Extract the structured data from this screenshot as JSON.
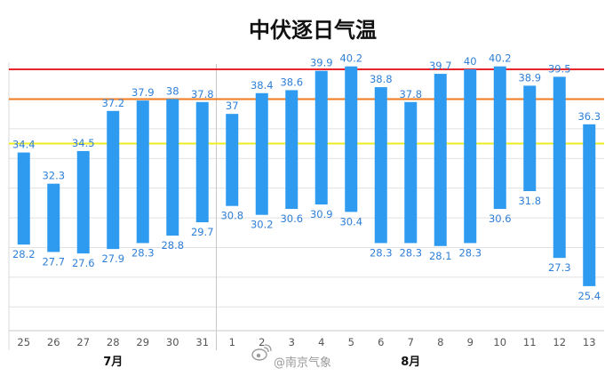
{
  "chart_data": {
    "type": "bar",
    "subtype": "floating-range",
    "title": "中伏逐日气温",
    "categories": [
      "25",
      "26",
      "27",
      "28",
      "29",
      "30",
      "31",
      "1",
      "2",
      "3",
      "4",
      "5",
      "6",
      "7",
      "8",
      "9",
      "10",
      "11",
      "12",
      "13"
    ],
    "months": [
      {
        "label": "7月",
        "from_index": 0,
        "to_index": 6
      },
      {
        "label": "8月",
        "from_index": 7,
        "to_index": 19
      }
    ],
    "series": [
      {
        "role": "high",
        "values": [
          34.4,
          32.3,
          34.5,
          37.2,
          37.9,
          38,
          37.8,
          37,
          38.4,
          38.6,
          39.9,
          40.2,
          38.8,
          37.8,
          39.7,
          40,
          40.2,
          38.9,
          39.5,
          36.3
        ]
      },
      {
        "role": "low",
        "values": [
          28.2,
          27.7,
          27.6,
          27.9,
          28.3,
          28.8,
          29.7,
          30.8,
          30.2,
          30.6,
          30.9,
          30.4,
          28.3,
          28.3,
          28.1,
          28.3,
          30.6,
          31.8,
          27.3,
          25.4
        ]
      }
    ],
    "reference_lines": [
      {
        "value": 40,
        "color": "#e8262b"
      },
      {
        "value": 38,
        "color": "#f07a1e"
      },
      {
        "value": 35,
        "color": "#eeee22"
      }
    ],
    "ylim": [
      22.4,
      41.2
    ],
    "grid": "horizontal",
    "bar_color": "#2f9bf0",
    "value_label_color": "#2f7fd8",
    "watermark": "@南京气象"
  }
}
